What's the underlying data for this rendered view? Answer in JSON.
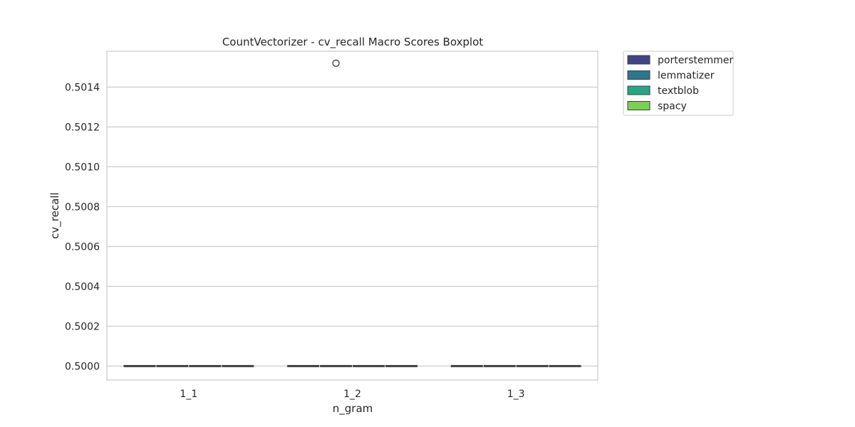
{
  "chart_data": {
    "type": "boxplot",
    "title": "CountVectorizer - cv_recall Macro Scores Boxplot",
    "xlabel": "n_gram",
    "ylabel": "cv_recall",
    "categories": [
      "1_1",
      "1_2",
      "1_3"
    ],
    "ylim": [
      0.49993,
      0.50158
    ],
    "yticks": [
      "0.5000",
      "0.5002",
      "0.5004",
      "0.5006",
      "0.5008",
      "0.5010",
      "0.5012",
      "0.5014"
    ],
    "ytick_values": [
      0.5,
      0.5002,
      0.5004,
      0.5006,
      0.5008,
      0.501,
      0.5012,
      0.5014
    ],
    "grid": true,
    "legend_position": "outside-top-right",
    "series": [
      {
        "name": "porterstemmer",
        "color": "#414487",
        "values": [
          0.5,
          0.5,
          0.5
        ]
      },
      {
        "name": "lemmatizer",
        "color": "#2a788e",
        "values": [
          0.5,
          0.5,
          0.5
        ]
      },
      {
        "name": "textblob",
        "color": "#22a884",
        "values": [
          0.5,
          0.5,
          0.5
        ]
      },
      {
        "name": "spacy",
        "color": "#7ad151",
        "values": [
          0.5,
          0.5,
          0.5
        ]
      }
    ],
    "outliers": [
      {
        "category": "1_2",
        "series": "lemmatizer",
        "value": 0.50152
      }
    ]
  }
}
